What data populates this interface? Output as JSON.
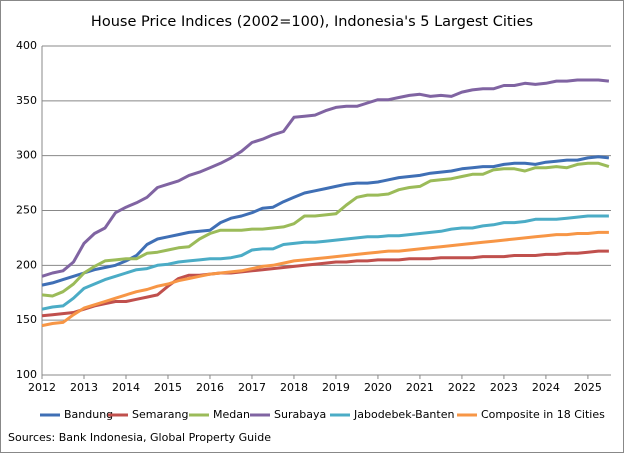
{
  "chart_data": {
    "type": "line",
    "title": "House Price Indices (2002=100), Indonesia's 5 Largest Cities",
    "source": "Sources: Bank Indonesia, Global Property Guide",
    "x": [
      2012,
      2012.25,
      2012.5,
      2012.75,
      2013,
      2013.25,
      2013.5,
      2013.75,
      2014,
      2014.25,
      2014.5,
      2014.75,
      2015,
      2015.25,
      2015.5,
      2015.75,
      2016,
      2016.25,
      2016.5,
      2016.75,
      2017,
      2017.25,
      2017.5,
      2017.75,
      2018,
      2018.25,
      2018.5,
      2018.75,
      2019,
      2019.25,
      2019.5,
      2019.75,
      2020,
      2020.25,
      2020.5,
      2020.75,
      2021,
      2021.25,
      2021.5,
      2021.75,
      2022,
      2022.25,
      2022.5,
      2022.75,
      2023,
      2023.25,
      2023.5,
      2023.75,
      2024,
      2024.25,
      2024.5,
      2024.75,
      2025,
      2025.25,
      2025.5
    ],
    "xlim": [
      2012,
      2025.55
    ],
    "xticks": [
      2012,
      2013,
      2014,
      2015,
      2016,
      2017,
      2018,
      2019,
      2020,
      2021,
      2022,
      2023,
      2024,
      2025
    ],
    "ylim": [
      100,
      400
    ],
    "yticks": [
      100,
      150,
      200,
      250,
      300,
      350,
      400
    ],
    "grid": true,
    "legend": "bottom",
    "series": [
      {
        "name": "Bandung",
        "color": "#3f6fb5",
        "values": [
          182,
          184,
          187,
          190,
          193,
          196,
          198,
          200,
          204,
          209,
          219,
          224,
          226,
          228,
          230,
          231,
          232,
          239,
          243,
          245,
          248,
          252,
          253,
          258,
          262,
          266,
          268,
          270,
          272,
          274,
          275,
          275,
          276,
          278,
          280,
          281,
          282,
          284,
          285,
          286,
          288,
          289,
          290,
          290,
          292,
          293,
          293,
          292,
          294,
          295,
          296,
          296,
          298,
          299,
          298
        ]
      },
      {
        "name": "Semarang",
        "color": "#c0504d",
        "values": [
          154,
          155,
          156,
          157,
          160,
          163,
          165,
          167,
          167,
          169,
          171,
          173,
          181,
          188,
          191,
          191,
          192,
          193,
          193,
          194,
          195,
          196,
          197,
          198,
          199,
          200,
          201,
          202,
          203,
          203,
          204,
          204,
          205,
          205,
          205,
          206,
          206,
          206,
          207,
          207,
          207,
          207,
          208,
          208,
          208,
          209,
          209,
          209,
          210,
          210,
          211,
          211,
          212,
          213,
          213
        ]
      },
      {
        "name": "Medan",
        "color": "#9bbb59",
        "values": [
          173,
          172,
          176,
          183,
          193,
          199,
          204,
          205,
          206,
          206,
          211,
          212,
          214,
          216,
          217,
          224,
          229,
          232,
          232,
          232,
          233,
          233,
          234,
          235,
          238,
          245,
          245,
          246,
          247,
          255,
          262,
          264,
          264,
          265,
          269,
          271,
          272,
          277,
          278,
          279,
          281,
          283,
          283,
          287,
          288,
          288,
          286,
          289,
          289,
          290,
          289,
          292,
          293,
          293,
          290
        ]
      },
      {
        "name": "Surabaya",
        "color": "#8064a2",
        "values": [
          190,
          193,
          195,
          203,
          220,
          229,
          234,
          248,
          253,
          257,
          262,
          271,
          274,
          277,
          282,
          285,
          289,
          293,
          298,
          304,
          312,
          315,
          319,
          322,
          335,
          336,
          337,
          341,
          344,
          345,
          345,
          348,
          351,
          351,
          353,
          355,
          356,
          354,
          355,
          354,
          358,
          360,
          361,
          361,
          364,
          364,
          366,
          365,
          366,
          368,
          368,
          369,
          369,
          369,
          368
        ]
      },
      {
        "name": "Jabodebek-Banten",
        "color": "#4bacc6",
        "values": [
          160,
          162,
          163,
          170,
          179,
          183,
          187,
          190,
          193,
          196,
          197,
          200,
          201,
          203,
          204,
          205,
          206,
          206,
          207,
          209,
          214,
          215,
          215,
          219,
          220,
          221,
          221,
          222,
          223,
          224,
          225,
          226,
          226,
          227,
          227,
          228,
          229,
          230,
          231,
          233,
          234,
          234,
          236,
          237,
          239,
          239,
          240,
          242,
          242,
          242,
          243,
          244,
          245,
          245,
          245
        ]
      },
      {
        "name": "Composite in 18 Cities",
        "color": "#f79646",
        "values": [
          145,
          147,
          148,
          155,
          161,
          164,
          167,
          170,
          173,
          176,
          178,
          181,
          183,
          186,
          188,
          190,
          192,
          193,
          194,
          195,
          197,
          199,
          200,
          202,
          204,
          205,
          206,
          207,
          208,
          209,
          210,
          211,
          212,
          213,
          213,
          214,
          215,
          216,
          217,
          218,
          219,
          220,
          221,
          222,
          223,
          224,
          225,
          226,
          227,
          228,
          228,
          229,
          229,
          230,
          230
        ]
      }
    ]
  }
}
